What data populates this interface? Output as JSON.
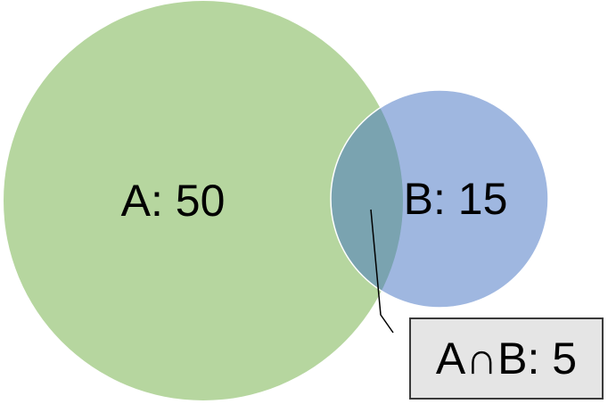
{
  "set_a": {
    "label": "A: 50",
    "color": "#a9cf8e"
  },
  "set_b": {
    "label": "B: 15",
    "color": "#8eaadb"
  },
  "intersection": {
    "label": "A∩B: 5",
    "color": "#7aa3b0"
  },
  "callout": {
    "box_color": "#e5e5e5",
    "border_color": "#3a3a3a"
  }
}
